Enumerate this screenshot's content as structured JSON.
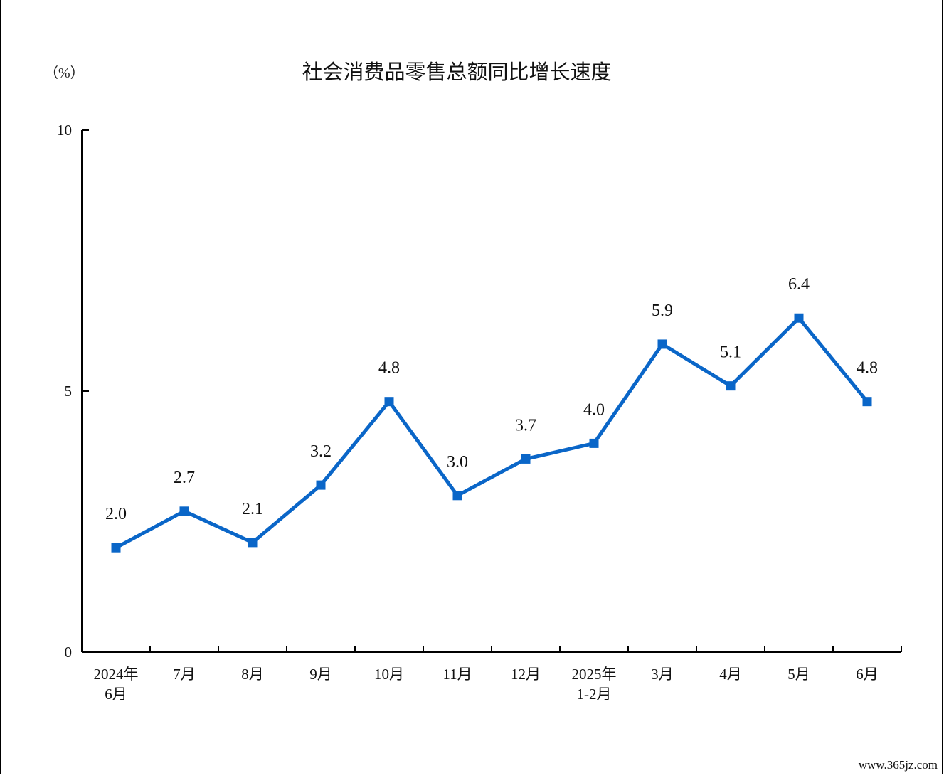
{
  "chart_data": {
    "type": "line",
    "title": "社会消费品零售总额同比增长速度",
    "unit_label": "（%）",
    "categories": [
      [
        "2024年",
        "6月"
      ],
      [
        "7月"
      ],
      [
        "8月"
      ],
      [
        "9月"
      ],
      [
        "10月"
      ],
      [
        "11月"
      ],
      [
        "12月"
      ],
      [
        "2025年",
        "1-2月"
      ],
      [
        "3月"
      ],
      [
        "4月"
      ],
      [
        "5月"
      ],
      [
        "6月"
      ]
    ],
    "series": [
      {
        "values": [
          2.0,
          2.7,
          2.1,
          3.2,
          4.8,
          3.0,
          3.7,
          4.0,
          5.9,
          5.1,
          6.4,
          4.8
        ],
        "labels": [
          "2.0",
          "2.7",
          "2.1",
          "3.2",
          "4.8",
          "3.0",
          "3.7",
          "4.0",
          "5.9",
          "5.1",
          "6.4",
          "4.8"
        ],
        "color": "#0a66c8"
      }
    ],
    "ylim": [
      0,
      10
    ],
    "yticks": [
      0,
      5,
      10
    ],
    "ytick_labels": [
      "0",
      "5",
      "10"
    ],
    "grid": false,
    "legend": "none"
  },
  "watermark": "www.365jz.com"
}
